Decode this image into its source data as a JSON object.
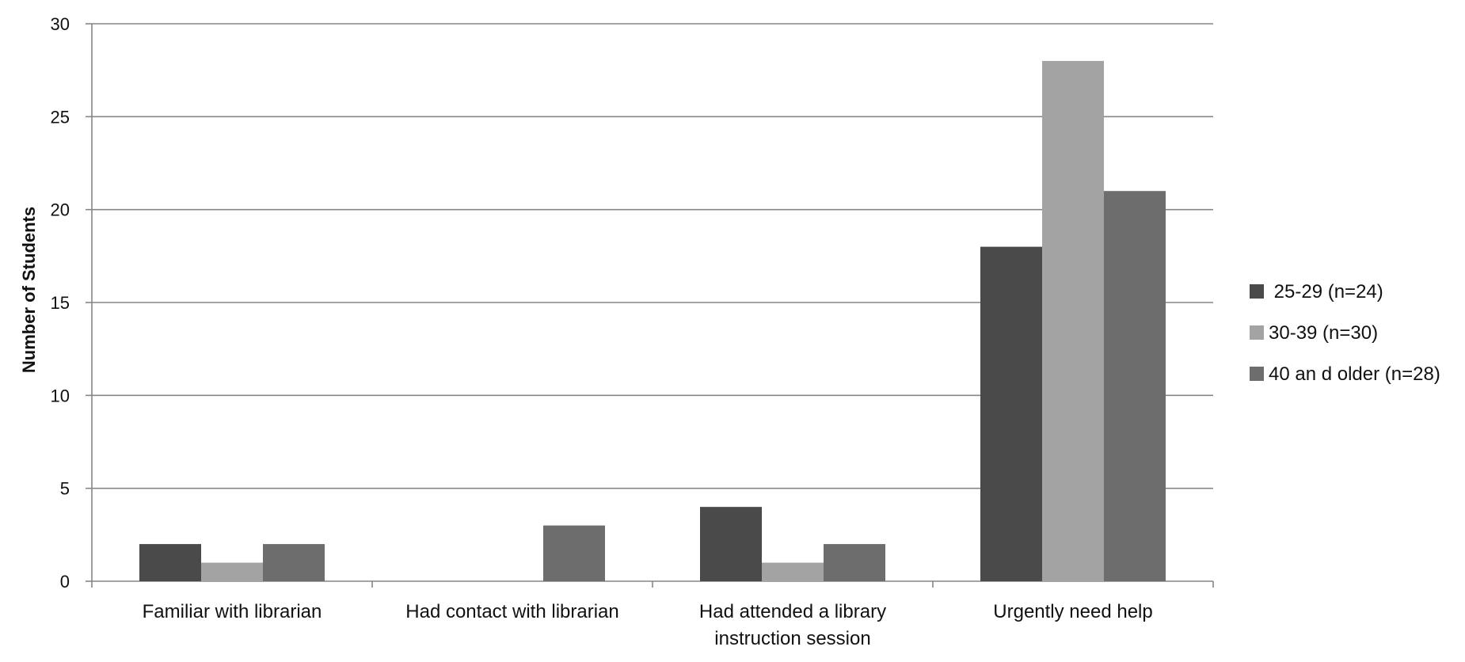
{
  "chart_data": {
    "type": "bar",
    "title": "",
    "xlabel": "",
    "ylabel": "Number of Students",
    "ylim": [
      0,
      30
    ],
    "yticks": [
      0,
      5,
      10,
      15,
      20,
      25,
      30
    ],
    "grid": true,
    "legend_position": "right",
    "categories": [
      [
        "Familiar with librarian"
      ],
      [
        "Had contact with librarian"
      ],
      [
        "Had attended a  library",
        "instruction session"
      ],
      [
        "Urgently need help"
      ]
    ],
    "series": [
      {
        "name": " 25-29 (n=24)",
        "color": "#4a4a4a",
        "values": [
          2,
          0,
          4,
          18
        ]
      },
      {
        "name": "30-39 (n=30)",
        "color": "#a3a3a3",
        "values": [
          1,
          0,
          1,
          28
        ]
      },
      {
        "name": "40 an d older (n=28)",
        "color": "#6d6d6d",
        "values": [
          2,
          3,
          2,
          21
        ]
      }
    ]
  }
}
